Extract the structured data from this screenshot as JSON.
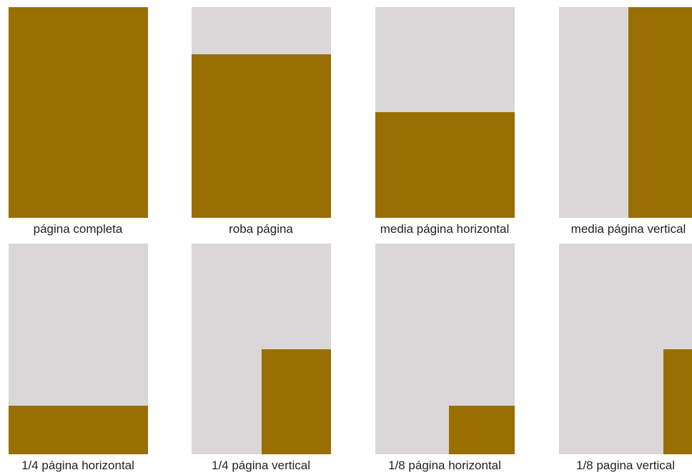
{
  "panels": [
    {
      "label": "página completa"
    },
    {
      "label": "roba página"
    },
    {
      "label": "media página horizontal"
    },
    {
      "label": "media página vertical"
    },
    {
      "label": "1/4 página horizontal"
    },
    {
      "label": "1/4 página vertical"
    },
    {
      "label": "1/8 página horizontal"
    },
    {
      "label": "1/8 pagina vertical"
    }
  ]
}
